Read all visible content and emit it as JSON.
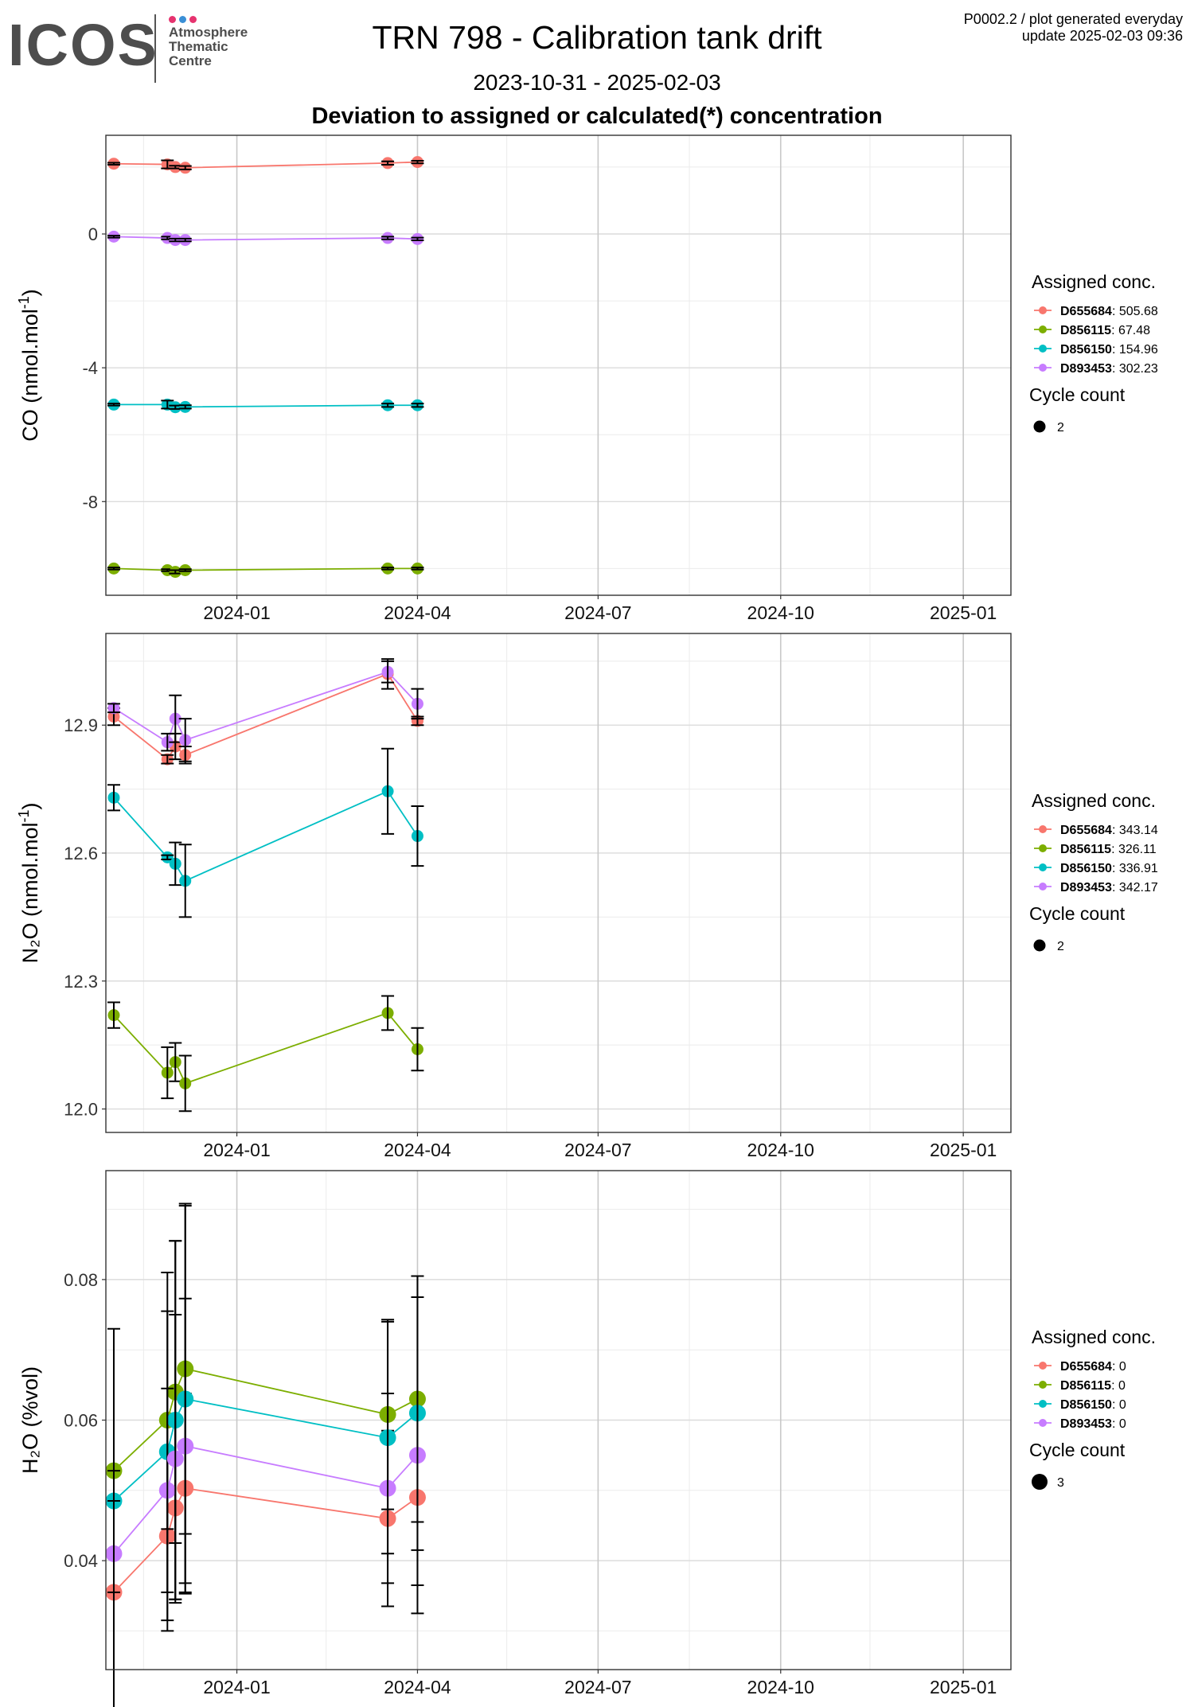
{
  "header": {
    "title": "TRN 798 - Calibration tank drift",
    "date_range": "2023-10-31 - 2025-02-03",
    "subtitle": "Deviation to assigned or calculated(*) concentration",
    "meta_line1": "P0002.2 / plot generated everyday",
    "meta_line2": "update  2025-02-03 09:36",
    "note": ""
  },
  "logo": {
    "mark": "ICOS",
    "lines": [
      "Atmosphere",
      "Thematic",
      "Centre"
    ],
    "dot_colors": [
      "#e6336f",
      "#3a8fd6",
      "#e6336f"
    ]
  },
  "colors": {
    "D655684": "#F8766D",
    "D856115": "#7CAE00",
    "D856150": "#00BFC4",
    "D893453": "#C77CFF"
  },
  "chart_data": [
    {
      "type": "line",
      "ylabel_main": "CO (nmol.mol",
      "ylabel_sup": "-1",
      "ylabel_tail": ")",
      "x_ticks": [
        "2024-01",
        "2024-04",
        "2024-07",
        "2024-10",
        "2025-01"
      ],
      "x_range": [
        "2023-10-27",
        "2025-01-25"
      ],
      "ylim": [
        -10.8,
        2.95
      ],
      "y_ticks": [
        0,
        -4,
        -8
      ],
      "grid": true,
      "legend_position": "right",
      "legend_title": "Assigned conc.",
      "size_legend_title": "Cycle count",
      "size_legend_value": "2",
      "x": [
        "2023-10-31",
        "2023-11-27",
        "2023-12-01",
        "2023-12-06",
        "2024-03-17",
        "2024-04-01"
      ],
      "series": [
        {
          "name": "D655684",
          "assigned": "505.68",
          "values": [
            2.1,
            2.08,
            2.0,
            1.98,
            2.12,
            2.15
          ],
          "errors": [
            0.03,
            0.12,
            0.04,
            0.05,
            0.05,
            0.04
          ]
        },
        {
          "name": "D856115",
          "assigned": "67.48",
          "values": [
            -10.0,
            -10.05,
            -10.1,
            -10.05,
            -10.0,
            -10.0
          ],
          "errors": [
            0.03,
            0.03,
            0.05,
            0.03,
            0.03,
            0.03
          ]
        },
        {
          "name": "D856150",
          "assigned": "154.96",
          "values": [
            -5.1,
            -5.1,
            -5.18,
            -5.17,
            -5.12,
            -5.12
          ],
          "errors": [
            0.03,
            0.12,
            0.05,
            0.05,
            0.05,
            0.05
          ]
        },
        {
          "name": "D893453",
          "assigned": "302.23",
          "values": [
            -0.08,
            -0.12,
            -0.18,
            -0.18,
            -0.12,
            -0.15
          ],
          "errors": [
            0.03,
            0.04,
            0.04,
            0.04,
            0.04,
            0.04
          ]
        }
      ]
    },
    {
      "type": "line",
      "ylabel_main": "N₂O (nmol.mol",
      "ylabel_sup": "-1",
      "ylabel_tail": ")",
      "x_ticks": [
        "2024-01",
        "2024-04",
        "2024-07",
        "2024-10",
        "2025-01"
      ],
      "x_range": [
        "2023-10-27",
        "2025-01-25"
      ],
      "ylim": [
        11.945,
        13.115
      ],
      "y_ticks": [
        12.0,
        12.3,
        12.6,
        12.9
      ],
      "grid": true,
      "legend_position": "right",
      "legend_title": "Assigned conc.",
      "size_legend_title": "Cycle count",
      "size_legend_value": "2",
      "x": [
        "2023-10-31",
        "2023-11-27",
        "2023-12-01",
        "2023-12-06",
        "2024-03-17",
        "2024-04-01"
      ],
      "series": [
        {
          "name": "D655684",
          "assigned": "343.14",
          "values": [
            12.92,
            12.82,
            12.85,
            12.83,
            13.02,
            12.91
          ],
          "errors": [
            0.02,
            0.01,
            0.03,
            0.02,
            0.035,
            0.01
          ]
        },
        {
          "name": "D856115",
          "assigned": "326.11",
          "values": [
            12.22,
            12.085,
            12.11,
            12.06,
            12.225,
            12.14
          ],
          "errors": [
            0.03,
            0.06,
            0.045,
            0.065,
            0.04,
            0.05
          ]
        },
        {
          "name": "D856150",
          "assigned": "336.91",
          "values": [
            12.73,
            12.59,
            12.575,
            12.535,
            12.745,
            12.64
          ],
          "errors": [
            0.03,
            0.005,
            0.05,
            0.085,
            0.1,
            0.07
          ]
        },
        {
          "name": "D893453",
          "assigned": "342.17",
          "values": [
            12.94,
            12.86,
            12.915,
            12.865,
            13.025,
            12.95
          ],
          "errors": [
            0.01,
            0.02,
            0.055,
            0.05,
            0.025,
            0.035
          ]
        }
      ]
    },
    {
      "type": "line",
      "ylabel_main": "H₂O (%vol)",
      "ylabel_sup": "",
      "ylabel_tail": "",
      "x_ticks": [
        "2024-01",
        "2024-04",
        "2024-07",
        "2024-10",
        "2025-01"
      ],
      "x_range": [
        "2023-10-27",
        "2025-01-25"
      ],
      "ylim": [
        0.0245,
        0.0955
      ],
      "y_ticks": [
        0.04,
        0.06,
        0.08
      ],
      "grid": true,
      "legend_position": "right",
      "legend_title": "Assigned conc.",
      "size_legend_title": "Cycle count",
      "size_legend_value": "3",
      "x": [
        "2023-10-31",
        "2023-11-27",
        "2023-12-01",
        "2023-12-06",
        "2024-03-17",
        "2024-04-01"
      ],
      "series": [
        {
          "name": "D655684",
          "assigned": "0",
          "values": [
            0.0355,
            0.0435,
            0.0475,
            0.0503,
            0.046,
            0.049
          ],
          "errors": [
            0.0,
            0.012,
            0.013,
            0.0135,
            0.0125,
            0.0125
          ]
        },
        {
          "name": "D856115",
          "assigned": "0",
          "values": [
            0.0528,
            0.06,
            0.064,
            0.0673,
            0.0608,
            0.063
          ],
          "errors": [
            0.0,
            0.0155,
            0.0215,
            0.0235,
            0.0135,
            0.0175
          ]
        },
        {
          "name": "D856150",
          "assigned": "0",
          "values": [
            0.0485,
            0.0555,
            0.06,
            0.063,
            0.0575,
            0.061
          ],
          "errors": [
            0.0,
            0.0255,
            0.0255,
            0.0275,
            0.0165,
            0.0195
          ]
        },
        {
          "name": "D893453",
          "assigned": "0",
          "values": [
            0.041,
            0.05,
            0.0545,
            0.0563,
            0.0503,
            0.055
          ],
          "errors": [
            0.032,
            0.0145,
            0.0205,
            0.021,
            0.0135,
            0.0225
          ]
        }
      ]
    }
  ]
}
